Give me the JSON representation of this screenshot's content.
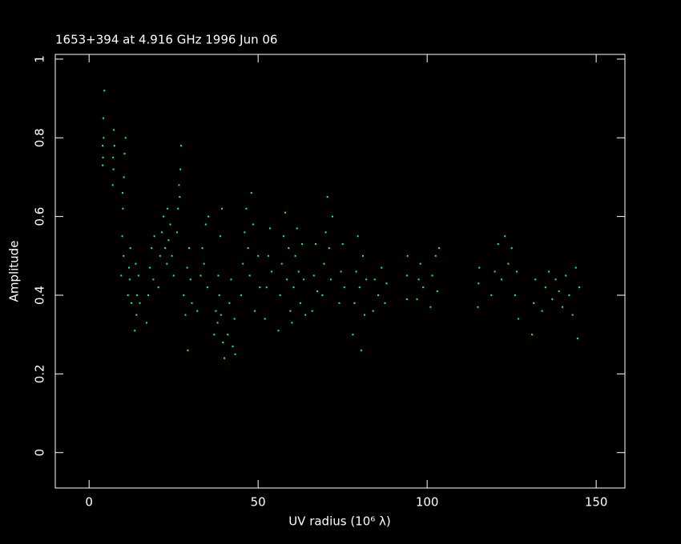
{
  "chart_data": {
    "type": "scatter",
    "title": "1653+394 at 4.916 GHz 1996 Jun 06",
    "x_label": "UV radius  (10⁶ λ)",
    "y_label": "Amplitude",
    "color": "#00ff80",
    "xlim": [
      -10,
      158.5
    ],
    "ylim": [
      -0.09,
      1.012
    ],
    "xticks": [
      0,
      50,
      100,
      150
    ],
    "yticks": [
      0,
      0.2,
      0.4,
      0.6,
      0.8,
      1
    ],
    "x": [
      4,
      4,
      4.2,
      4.5,
      4.3,
      4.1,
      7,
      7.2,
      7.5,
      7.3,
      7.1,
      9.5,
      9.8,
      10,
      10.3,
      10.5,
      10.8,
      10.2,
      9.9,
      11.5,
      11.8,
      12.2,
      12,
      12.5,
      13.5,
      14,
      14.2,
      14.6,
      15,
      13.8,
      17,
      17.5,
      18,
      18.5,
      19,
      19.3,
      20.5,
      21,
      21.5,
      22,
      22.5,
      23,
      23.5,
      24,
      24.5,
      25,
      23.2,
      26,
      26.3,
      26.6,
      27,
      27.2,
      26.8,
      28,
      28.5,
      29,
      29.2,
      29.6,
      30,
      30.4,
      32,
      33,
      33.5,
      34,
      34.5,
      35,
      35.3,
      37,
      37.5,
      38,
      38.5,
      38.8,
      39,
      39.3,
      39.6,
      40,
      38.2,
      41,
      41.5,
      42,
      42.5,
      43,
      43.2,
      45,
      45.5,
      46,
      46.5,
      47,
      47.5,
      48,
      48.5,
      49,
      50,
      50.5,
      52,
      52.5,
      53,
      53.5,
      54,
      56,
      56.5,
      57,
      57.5,
      58,
      58.5,
      59,
      59.5,
      60,
      60.5,
      61,
      61.5,
      62,
      62.5,
      63,
      63.5,
      64,
      66,
      66.5,
      67,
      67.5,
      69,
      69.5,
      70,
      70.5,
      71,
      71.5,
      72,
      74,
      74.5,
      75,
      75.5,
      78,
      78.5,
      79,
      79.5,
      80,
      80.5,
      81,
      81.5,
      82,
      84,
      84.5,
      85.5,
      86.5,
      87.5,
      88,
      94,
      94,
      94.2,
      97,
      97.5,
      98,
      98.8,
      101,
      101.5,
      102.5,
      103,
      103.5,
      115,
      115.2,
      115.4,
      119,
      120,
      121,
      122,
      123,
      124,
      125,
      126,
      127,
      126.5,
      131,
      131.5,
      132,
      134,
      135,
      136,
      137,
      138,
      139,
      140,
      141,
      142,
      143,
      144,
      144.5,
      145
    ],
    "values": [
      0.73,
      0.78,
      0.85,
      0.92,
      0.8,
      0.75,
      0.68,
      0.72,
      0.78,
      0.82,
      0.75,
      0.45,
      0.55,
      0.62,
      0.7,
      0.76,
      0.8,
      0.5,
      0.66,
      0.4,
      0.47,
      0.52,
      0.44,
      0.38,
      0.31,
      0.35,
      0.4,
      0.45,
      0.38,
      0.48,
      0.33,
      0.4,
      0.47,
      0.52,
      0.44,
      0.55,
      0.42,
      0.5,
      0.56,
      0.6,
      0.52,
      0.48,
      0.54,
      0.58,
      0.5,
      0.45,
      0.62,
      0.56,
      0.62,
      0.68,
      0.72,
      0.78,
      0.65,
      0.4,
      0.35,
      0.47,
      0.26,
      0.52,
      0.44,
      0.38,
      0.36,
      0.45,
      0.52,
      0.48,
      0.58,
      0.42,
      0.6,
      0.3,
      0.36,
      0.33,
      0.4,
      0.55,
      0.35,
      0.62,
      0.28,
      0.24,
      0.45,
      0.3,
      0.38,
      0.44,
      0.27,
      0.34,
      0.25,
      0.4,
      0.48,
      0.56,
      0.62,
      0.52,
      0.45,
      0.66,
      0.58,
      0.36,
      0.5,
      0.42,
      0.34,
      0.42,
      0.5,
      0.57,
      0.46,
      0.31,
      0.4,
      0.48,
      0.55,
      0.61,
      0.44,
      0.52,
      0.36,
      0.33,
      0.42,
      0.5,
      0.57,
      0.46,
      0.38,
      0.53,
      0.44,
      0.35,
      0.36,
      0.45,
      0.53,
      0.41,
      0.4,
      0.48,
      0.56,
      0.65,
      0.52,
      0.44,
      0.6,
      0.38,
      0.46,
      0.53,
      0.42,
      0.3,
      0.38,
      0.46,
      0.55,
      0.42,
      0.26,
      0.5,
      0.35,
      0.44,
      0.36,
      0.44,
      0.4,
      0.47,
      0.38,
      0.43,
      0.39,
      0.45,
      0.5,
      0.39,
      0.44,
      0.48,
      0.42,
      0.37,
      0.45,
      0.5,
      0.41,
      0.52,
      0.37,
      0.43,
      0.47,
      0.4,
      0.46,
      0.53,
      0.44,
      0.55,
      0.48,
      0.52,
      0.4,
      0.34,
      0.46,
      0.3,
      0.38,
      0.44,
      0.36,
      0.42,
      0.46,
      0.39,
      0.44,
      0.41,
      0.37,
      0.45,
      0.4,
      0.35,
      0.47,
      0.29,
      0.42
    ]
  }
}
